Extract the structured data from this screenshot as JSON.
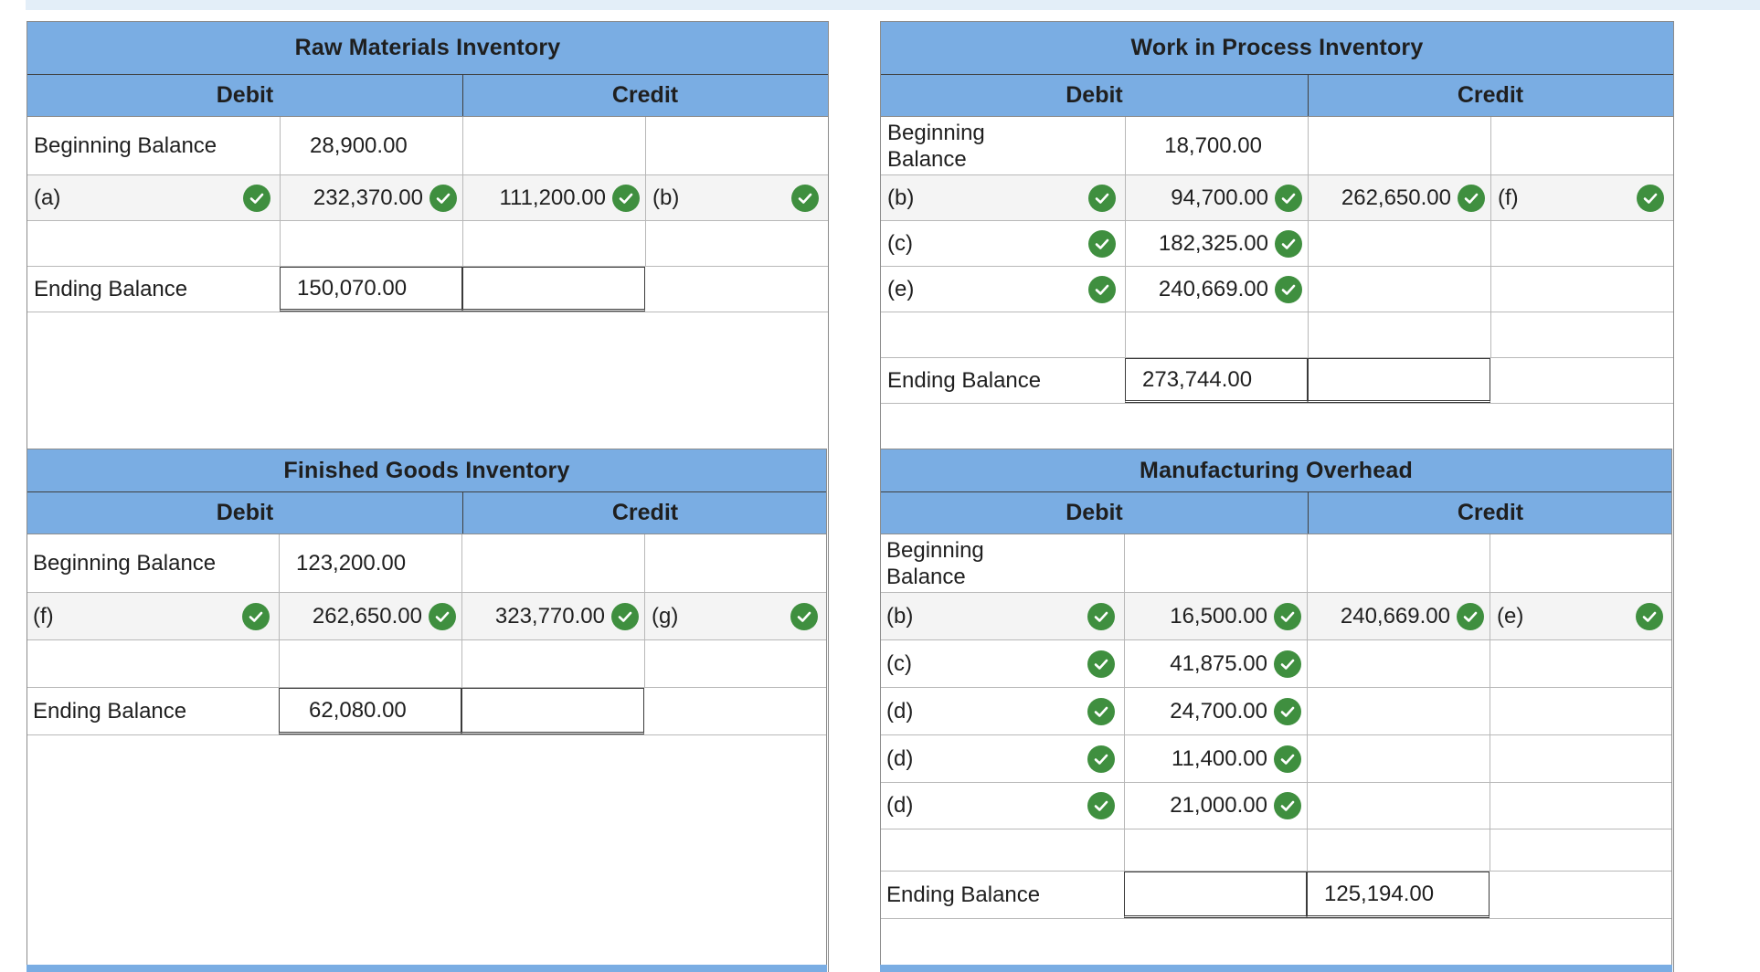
{
  "colors": {
    "header_bg": "#7aade3",
    "check_green": "#3f8f3f",
    "top_band": "#e3eef8"
  },
  "icons": {
    "check": "check-circle-icon"
  },
  "raw_materials": {
    "title": "Raw Materials Inventory",
    "debit_label": "Debit",
    "credit_label": "Credit",
    "beginning_label": "Beginning Balance",
    "beginning_amount": "28,900.00",
    "row1_debit_ref": "(a)",
    "row1_debit_amount": "232,370.00",
    "row1_credit_amount": "111,200.00",
    "row1_credit_ref": "(b)",
    "ending_label": "Ending Balance",
    "ending_amount": "150,070.00"
  },
  "work_in_process": {
    "title": "Work in Process Inventory",
    "debit_label": "Debit",
    "credit_label": "Credit",
    "beginning_label": "Beginning Balance",
    "beginning_amount": "18,700.00",
    "rows": [
      {
        "ref": "(b)",
        "amount": "94,700.00"
      },
      {
        "ref": "(c)",
        "amount": "182,325.00"
      },
      {
        "ref": "(e)",
        "amount": "240,669.00"
      }
    ],
    "credit_amount": "262,650.00",
    "credit_ref": "(f)",
    "ending_label": "Ending Balance",
    "ending_amount": "273,744.00"
  },
  "finished_goods": {
    "title": "Finished Goods Inventory",
    "debit_label": "Debit",
    "credit_label": "Credit",
    "beginning_label": "Beginning Balance",
    "beginning_amount": "123,200.00",
    "row1_debit_ref": "(f)",
    "row1_debit_amount": "262,650.00",
    "row1_credit_amount": "323,770.00",
    "row1_credit_ref": "(g)",
    "ending_label": "Ending Balance",
    "ending_amount": "62,080.00"
  },
  "manufacturing_overhead": {
    "title": "Manufacturing Overhead",
    "debit_label": "Debit",
    "credit_label": "Credit",
    "beginning_label": "Beginning Balance",
    "beginning_amount": "",
    "rows": [
      {
        "ref": "(b)",
        "amount": "16,500.00"
      },
      {
        "ref": "(c)",
        "amount": "41,875.00"
      },
      {
        "ref": "(d)",
        "amount": "24,700.00"
      },
      {
        "ref": "(d)",
        "amount": "11,400.00"
      },
      {
        "ref": "(d)",
        "amount": "21,000.00"
      }
    ],
    "credit_amount": "240,669.00",
    "credit_ref": "(e)",
    "ending_label": "Ending Balance",
    "ending_amount": "125,194.00"
  }
}
